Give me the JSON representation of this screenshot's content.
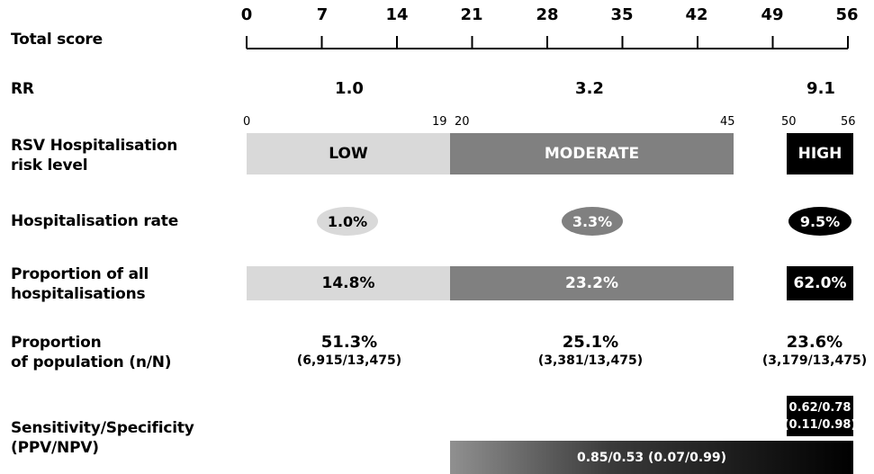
{
  "labels": {
    "total_score": "Total score",
    "rr": "RR",
    "risk_level_line1": "RSV Hospitalisation",
    "risk_level_line2": "risk level",
    "hosp_rate": "Hospitalisation rate",
    "prop_hosp_line1": "Proportion of all",
    "prop_hosp_line2": "hospitalisations",
    "prop_pop_line1": "Proportion",
    "prop_pop_line2": "of population (n/N)",
    "sens_line1": "Sensitivity/Specificity",
    "sens_line2": "(PPV/NPV)"
  },
  "axis": {
    "ticks": [
      "0",
      "7",
      "14",
      "21",
      "28",
      "35",
      "42",
      "49",
      "56"
    ]
  },
  "rr": {
    "low": "1.0",
    "moderate": "3.2",
    "high": "9.1"
  },
  "risk": {
    "low": {
      "label": "LOW",
      "start": "0",
      "end": "19"
    },
    "moderate": {
      "label": "MODERATE",
      "start": "20",
      "end": "45"
    },
    "high": {
      "label": "HIGH",
      "start": "50",
      "end": "56"
    }
  },
  "hospitalisation_rate": {
    "low": "1.0%",
    "moderate": "3.3%",
    "high": "9.5%"
  },
  "proportion_hospitalisations": {
    "low": "14.8%",
    "moderate": "23.2%",
    "high": "62.0%"
  },
  "proportion_population": {
    "low": {
      "pct": "51.3%",
      "n": "(6,915/13,475)"
    },
    "moderate": {
      "pct": "25.1%",
      "n": "(3,381/13,475)"
    },
    "high": {
      "pct": "23.6%",
      "n": "(3,179/13,475)"
    }
  },
  "sensitivity": {
    "high_line1": "0.62/0.78",
    "high_line2": "(0.11/0.98)",
    "combined": "0.85/0.53 (0.07/0.99)"
  },
  "colors": {
    "low": "#d9d9d9",
    "moderate": "#808080",
    "high": "#000000"
  }
}
